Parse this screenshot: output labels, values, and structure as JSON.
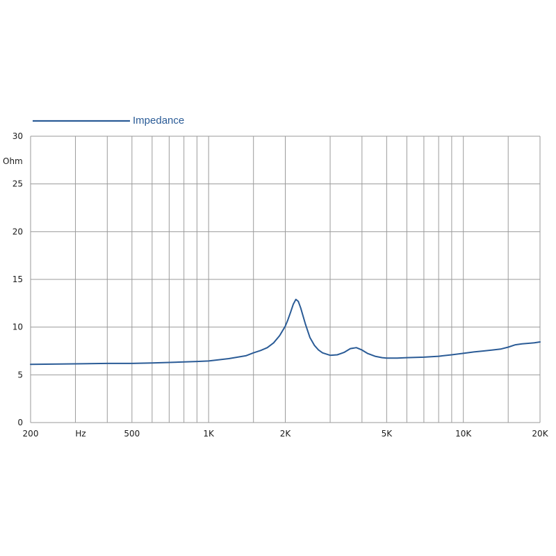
{
  "chart_data": {
    "type": "line",
    "legend": {
      "position": "top-left",
      "entries": [
        "Impedance"
      ]
    },
    "ylabel": "Ohm",
    "xlabel": "Hz",
    "x_scale": "log",
    "xlim": [
      200,
      20000
    ],
    "ylim": [
      0,
      30
    ],
    "grid": true,
    "y_ticks": [
      {
        "value": 0,
        "label": "0"
      },
      {
        "value": 5,
        "label": "5"
      },
      {
        "value": 10,
        "label": "10"
      },
      {
        "value": 15,
        "label": "15"
      },
      {
        "value": 20,
        "label": "20"
      },
      {
        "value": 25,
        "label": "25"
      },
      {
        "value": 30,
        "label": "30"
      }
    ],
    "x_tick_labels": [
      {
        "value": 200,
        "label": "200"
      },
      {
        "value": 500,
        "label": "500"
      },
      {
        "value": 1000,
        "label": "1K"
      },
      {
        "value": 2000,
        "label": "2K"
      },
      {
        "value": 5000,
        "label": "5K"
      },
      {
        "value": 10000,
        "label": "10K"
      },
      {
        "value": 20000,
        "label": "20K"
      }
    ],
    "x_gridlines": [
      300,
      400,
      500,
      600,
      700,
      800,
      900,
      1000,
      1500,
      2000,
      3000,
      4000,
      5000,
      6000,
      7000,
      8000,
      9000,
      10000,
      15000,
      20000
    ],
    "series": [
      {
        "name": "Impedance",
        "color": "#2a5b96",
        "x": [
          200,
          300,
          400,
          500,
          600,
          700,
          800,
          900,
          1000,
          1200,
          1400,
          1500,
          1600,
          1700,
          1800,
          1900,
          2000,
          2050,
          2100,
          2150,
          2200,
          2250,
          2300,
          2400,
          2500,
          2600,
          2700,
          2800,
          3000,
          3200,
          3400,
          3600,
          3800,
          4000,
          4200,
          4500,
          4800,
          5000,
          5500,
          6000,
          7000,
          8000,
          9000,
          10000,
          11000,
          12000,
          13000,
          14000,
          15000,
          16000,
          17000,
          18000,
          19000,
          20000
        ],
        "y": [
          6.1,
          6.15,
          6.2,
          6.2,
          6.25,
          6.3,
          6.35,
          6.4,
          6.45,
          6.7,
          7.0,
          7.3,
          7.55,
          7.85,
          8.35,
          9.1,
          10.1,
          10.8,
          11.6,
          12.4,
          12.9,
          12.7,
          12.0,
          10.3,
          8.9,
          8.1,
          7.6,
          7.3,
          7.05,
          7.1,
          7.35,
          7.75,
          7.85,
          7.6,
          7.25,
          6.95,
          6.8,
          6.75,
          6.75,
          6.8,
          6.85,
          6.95,
          7.1,
          7.25,
          7.4,
          7.5,
          7.6,
          7.7,
          7.9,
          8.15,
          8.25,
          8.3,
          8.35,
          8.45
        ]
      }
    ]
  }
}
